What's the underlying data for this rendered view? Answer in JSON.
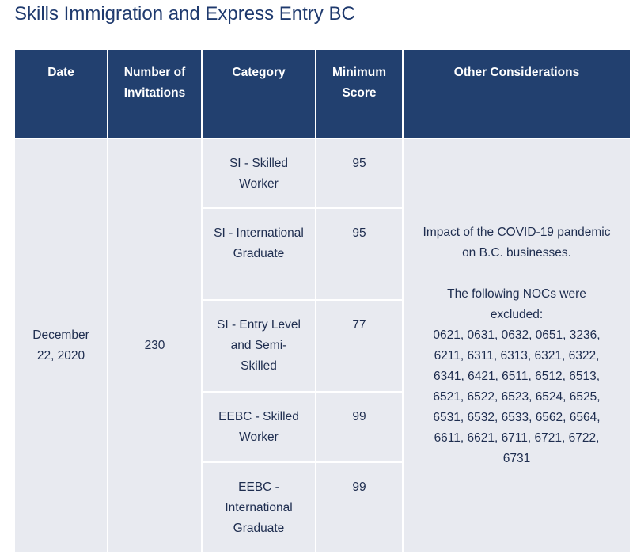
{
  "header": {
    "title": "Skills Immigration and Express Entry BC"
  },
  "table": {
    "columns": [
      "Date",
      "Number of Invitations",
      "Category",
      "Minimum Score",
      "Other Considerations"
    ],
    "date": "December 22, 2020",
    "invitations": "230",
    "rows": [
      [
        "SI - Skilled Worker",
        "95"
      ],
      [
        "SI - International Graduate",
        "95"
      ],
      [
        "SI - Entry Level and Semi-Skilled",
        "77"
      ],
      [
        "EEBC - Skilled Worker",
        "99"
      ],
      [
        "EEBC - International Graduate",
        "99"
      ]
    ],
    "other": {
      "note": "Impact of the COVID-19 pandemic on B.C. businesses.",
      "excluded_heading": "The following NOCs were excluded:",
      "excluded_list": "0621, 0631, 0632, 0651, 3236, 6211, 6311, 6313, 6321, 6322, 6341, 6421, 6511, 6512, 6513, 6521, 6522, 6523, 6524, 6525, 6531, 6532, 6533, 6562, 6564, 6611, 6621, 6711, 6721, 6722, 6731"
    }
  }
}
